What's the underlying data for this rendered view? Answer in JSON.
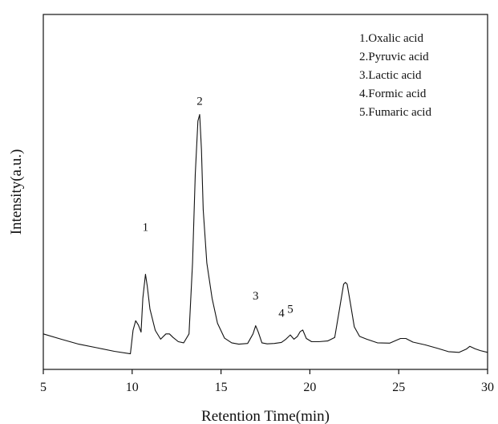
{
  "chart_data": {
    "type": "line",
    "xlabel": "Retention Time(min)",
    "ylabel": "Intensity(a.u.)",
    "xlim": [
      5,
      30
    ],
    "ylim": [
      0,
      1
    ],
    "x_ticks": [
      5,
      10,
      15,
      20,
      25,
      30
    ],
    "y_ticks_shown": false,
    "grid": false,
    "legend_position": "top-right",
    "legend": [
      "1.Oxalic acid",
      "2.Pyruvic acid",
      "3.Lactic acid",
      "4.Formic acid",
      "5.Fumaric acid"
    ],
    "peak_labels": [
      {
        "text": "1",
        "x": 10.75,
        "y": 0.39
      },
      {
        "text": "2",
        "x": 13.8,
        "y": 0.746
      },
      {
        "text": "3",
        "x": 16.95,
        "y": 0.197
      },
      {
        "text": "4",
        "x": 18.4,
        "y": 0.148
      },
      {
        "text": "5",
        "x": 18.9,
        "y": 0.16
      }
    ],
    "series": [
      {
        "x": [
          5,
          6,
          7,
          8,
          9,
          9.9,
          10.05,
          10.2,
          10.35,
          10.5,
          10.6,
          10.75,
          10.85,
          11,
          11.3,
          11.6,
          11.9,
          12.1,
          12.3,
          12.6,
          12.9,
          13.2,
          13.4,
          13.55,
          13.7,
          13.8,
          13.9,
          14,
          14.2,
          14.5,
          14.8,
          15.2,
          15.6,
          16,
          16.5,
          16.8,
          16.95,
          17.1,
          17.3,
          17.6,
          18,
          18.4,
          18.65,
          18.9,
          19.1,
          19.3,
          19.45,
          19.6,
          19.8,
          20.1,
          20.5,
          21,
          21.4,
          21.7,
          21.9,
          22,
          22.1,
          22.3,
          22.5,
          22.8,
          23.2,
          23.8,
          24.5,
          25.1,
          25.4,
          25.8,
          26.5,
          27.2,
          27.8,
          28.4,
          28.8,
          29,
          29.3,
          29.6,
          30
        ],
        "y": [
          0.1,
          0.085,
          0.071,
          0.061,
          0.051,
          0.044,
          0.11,
          0.137,
          0.125,
          0.105,
          0.2,
          0.268,
          0.235,
          0.17,
          0.11,
          0.085,
          0.1,
          0.1,
          0.09,
          0.078,
          0.075,
          0.1,
          0.3,
          0.55,
          0.7,
          0.718,
          0.62,
          0.45,
          0.3,
          0.2,
          0.13,
          0.088,
          0.075,
          0.071,
          0.073,
          0.1,
          0.123,
          0.105,
          0.075,
          0.072,
          0.073,
          0.076,
          0.085,
          0.097,
          0.085,
          0.093,
          0.106,
          0.111,
          0.087,
          0.078,
          0.078,
          0.08,
          0.09,
          0.18,
          0.24,
          0.245,
          0.24,
          0.18,
          0.12,
          0.093,
          0.085,
          0.075,
          0.074,
          0.087,
          0.087,
          0.077,
          0.069,
          0.059,
          0.05,
          0.048,
          0.057,
          0.065,
          0.058,
          0.053,
          0.048
        ]
      }
    ]
  }
}
